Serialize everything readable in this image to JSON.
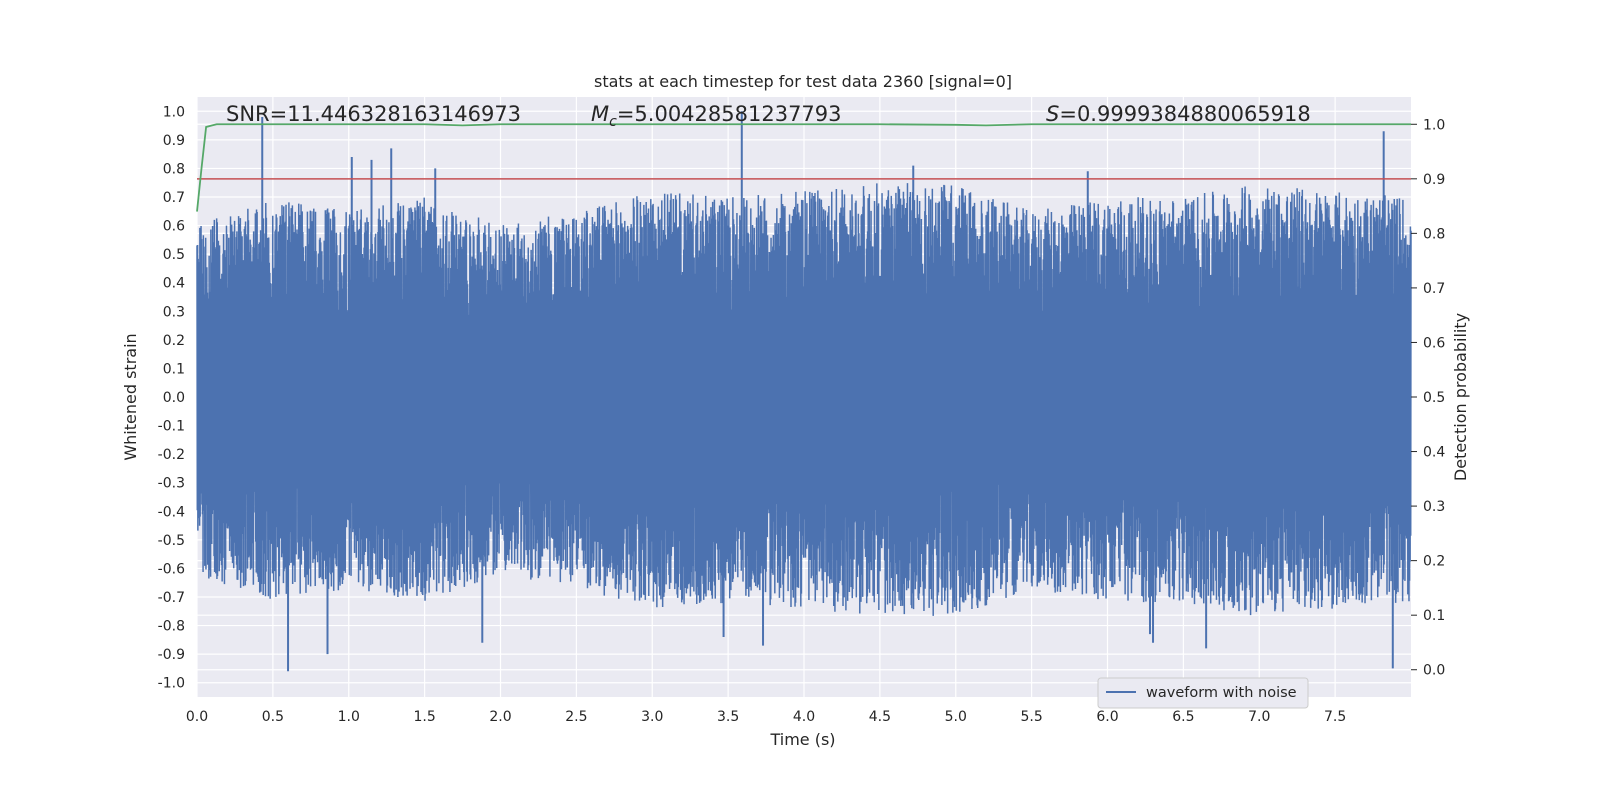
{
  "chart_data": {
    "type": "line",
    "title": "stats at each timestep for test data 2360 [signal=0]",
    "xlabel": "Time (s)",
    "ylabel_left": "Whitened strain",
    "ylabel_right": "Detection probability",
    "xlim": [
      0.0,
      8.0
    ],
    "ylim_left": [
      -1.05,
      1.05
    ],
    "ylim_right": [
      -0.05,
      1.05
    ],
    "x_ticks": [
      "0.0",
      "0.5",
      "1.0",
      "1.5",
      "2.0",
      "2.5",
      "3.0",
      "3.5",
      "4.0",
      "4.5",
      "5.0",
      "5.5",
      "6.0",
      "6.5",
      "7.0",
      "7.5"
    ],
    "y_left_ticks": [
      "1.0",
      "0.9",
      "0.8",
      "0.7",
      "0.6",
      "0.5",
      "0.4",
      "0.3",
      "0.2",
      "0.1",
      "0.0",
      "-0.1",
      "-0.2",
      "-0.3",
      "-0.4",
      "-0.5",
      "-0.6",
      "-0.7",
      "-0.8",
      "-0.9",
      "-1.0"
    ],
    "y_right_ticks": [
      "1.0",
      "0.9",
      "0.8",
      "0.7",
      "0.6",
      "0.5",
      "0.4",
      "0.3",
      "0.2",
      "0.1",
      "0.0"
    ],
    "annotations": {
      "snr_label": "SNR=11.446328163146973",
      "mc_symbol": "M",
      "mc_subscript": "c",
      "mc_value": "=5.00428581237793",
      "s_symbol": "S",
      "s_value": "=0.9999384880065918"
    },
    "legend": {
      "label": "waveform with noise",
      "position": "lower-right"
    },
    "threshold": {
      "axis": "right",
      "value": 0.9,
      "color": "#c44e52"
    },
    "series": [
      {
        "name": "waveform with noise",
        "axis": "left",
        "color": "#4c72b0",
        "note": "dense whitened strain noise, 2048 Hz x 8 s",
        "sample_rate": 2048,
        "extremes": {
          "x": [
            0.43,
            0.6,
            0.86,
            1.02,
            1.15,
            1.28,
            1.57,
            1.88,
            3.47,
            3.59,
            3.73,
            4.72,
            5.87,
            6.28,
            6.3,
            6.65,
            7.82,
            7.88
          ],
          "y": [
            0.98,
            -0.96,
            -0.9,
            0.84,
            0.83,
            0.87,
            0.8,
            -0.86,
            -0.84,
            1.0,
            -0.87,
            0.81,
            0.79,
            -0.83,
            -0.86,
            -0.88,
            0.93,
            -0.95
          ]
        },
        "upper_envelope": {
          "x": [
            0.0,
            0.5,
            1.0,
            1.5,
            2.0,
            2.5,
            3.0,
            3.5,
            4.0,
            4.5,
            5.0,
            5.5,
            6.0,
            6.5,
            7.0,
            7.5,
            8.0
          ],
          "y": [
            0.6,
            0.7,
            0.65,
            0.7,
            0.6,
            0.65,
            0.72,
            0.7,
            0.72,
            0.75,
            0.75,
            0.65,
            0.7,
            0.7,
            0.75,
            0.72,
            0.7
          ]
        }
      },
      {
        "name": "",
        "axis": "right",
        "color": "#55a868",
        "x": [
          0.0,
          0.03,
          0.06,
          0.1,
          0.13,
          0.5,
          1.0,
          1.5,
          1.75,
          2.0,
          3.0,
          4.0,
          4.5,
          5.0,
          5.2,
          5.5,
          6.0,
          7.0,
          8.0
        ],
        "y": [
          0.84,
          0.92,
          0.995,
          0.998,
          1.0,
          1.0,
          1.0,
          1.0,
          0.998,
          1.0,
          1.0,
          1.0,
          1.0,
          0.999,
          0.998,
          1.0,
          1.0,
          1.0,
          1.0
        ]
      }
    ],
    "colors": {
      "axes_bg": "#eaeaf2",
      "grid": "#ffffff",
      "text": "#262626",
      "noise": "#4c72b0",
      "probability": "#55a868",
      "threshold": "#c44e52"
    }
  }
}
